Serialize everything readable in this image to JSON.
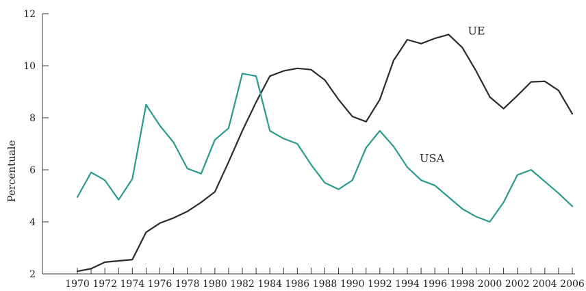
{
  "chart_data": {
    "type": "line",
    "title": "",
    "xlabel": "",
    "ylabel": "Percentuale",
    "ylim": [
      2,
      12
    ],
    "xlim": [
      1970,
      2006
    ],
    "y_ticks": [
      2,
      4,
      6,
      8,
      10,
      12
    ],
    "x_ticks": [
      1970,
      1972,
      1974,
      1976,
      1978,
      1980,
      1982,
      1984,
      1986,
      1988,
      1990,
      1992,
      1994,
      1996,
      1998,
      2000,
      2002,
      2004,
      2006
    ],
    "grid": false,
    "legend": "none",
    "x": [
      1970,
      1971,
      1972,
      1973,
      1974,
      1975,
      1976,
      1977,
      1978,
      1979,
      1980,
      1981,
      1982,
      1983,
      1984,
      1985,
      1986,
      1987,
      1988,
      1989,
      1990,
      1991,
      1992,
      1993,
      1994,
      1995,
      1996,
      1997,
      1998,
      1999,
      2000,
      2001,
      2002,
      2003,
      2004,
      2005,
      2006
    ],
    "series": [
      {
        "name": "UE",
        "color": "#2b2b2b",
        "values": [
          2.1,
          2.2,
          2.45,
          2.5,
          2.55,
          3.6,
          3.95,
          4.15,
          4.4,
          4.75,
          5.15,
          6.3,
          7.5,
          8.6,
          9.6,
          9.8,
          9.9,
          9.85,
          9.45,
          8.7,
          8.05,
          7.85,
          8.7,
          10.2,
          11.0,
          10.85,
          11.05,
          11.2,
          10.7,
          9.8,
          8.8,
          8.35,
          8.85,
          9.38,
          9.4,
          9.05,
          8.15
        ]
      },
      {
        "name": "USA",
        "color": "#2a9a8a",
        "values": [
          4.95,
          5.9,
          5.6,
          4.85,
          5.65,
          8.5,
          7.7,
          7.05,
          6.05,
          5.85,
          7.15,
          7.6,
          9.7,
          9.6,
          7.5,
          7.2,
          7.0,
          6.2,
          5.5,
          5.25,
          5.6,
          6.85,
          7.5,
          6.9,
          6.1,
          5.6,
          5.4,
          4.95,
          4.5,
          4.2,
          4.0,
          4.75,
          5.8,
          6.0,
          5.55,
          5.1,
          4.6
        ]
      }
    ]
  }
}
